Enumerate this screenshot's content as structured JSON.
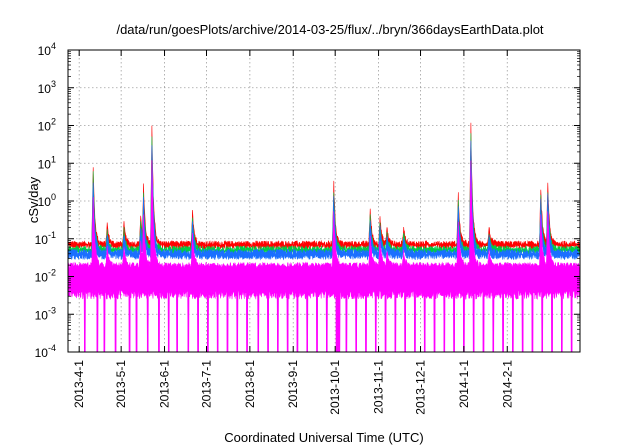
{
  "chart_data": {
    "type": "line",
    "title": "/data/run/goesPlots/archive/2014-03-25/flux/../bryn/366daysEarthData.plot",
    "xlabel": "Coordinated Universal Time (UTC)",
    "ylabel": "cSv/day",
    "y_scale": "log",
    "ylim": [
      0.0001,
      10000
    ],
    "xlim": [
      "2013-03-24",
      "2014-03-25"
    ],
    "y_ticks": [
      {
        "value": 0.0001,
        "base": "10",
        "exp": "-4"
      },
      {
        "value": 0.001,
        "base": "10",
        "exp": "-3"
      },
      {
        "value": 0.01,
        "base": "10",
        "exp": "-2"
      },
      {
        "value": 0.1,
        "base": "10",
        "exp": "-1"
      },
      {
        "value": 1,
        "base": "10",
        "exp": "0"
      },
      {
        "value": 10,
        "base": "10",
        "exp": "1"
      },
      {
        "value": 100,
        "base": "10",
        "exp": "2"
      },
      {
        "value": 1000,
        "base": "10",
        "exp": "3"
      },
      {
        "value": 10000,
        "base": "10",
        "exp": "4"
      }
    ],
    "x_ticks": [
      {
        "date": "2013-04-01",
        "label": "2013-4-1"
      },
      {
        "date": "2013-05-01",
        "label": "2013-5-1"
      },
      {
        "date": "2013-06-01",
        "label": "2013-6-1"
      },
      {
        "date": "2013-07-01",
        "label": "2013-7-1"
      },
      {
        "date": "2013-08-01",
        "label": "2013-8-1"
      },
      {
        "date": "2013-09-01",
        "label": "2013-9-1"
      },
      {
        "date": "2013-10-01",
        "label": "2013-10-1"
      },
      {
        "date": "2013-11-01",
        "label": "2013-11-1"
      },
      {
        "date": "2013-12-01",
        "label": "2013-12-1"
      },
      {
        "date": "2014-01-01",
        "label": "2014-1-1"
      },
      {
        "date": "2014-02-01",
        "label": "2014-2-1"
      }
    ],
    "grid": true,
    "series": [
      {
        "color": "#ff0000",
        "baseline": 0.075,
        "low": 0.075
      },
      {
        "color": "#00cc44",
        "baseline": 0.055,
        "low": 0.055
      },
      {
        "color": "#1a6fff",
        "baseline": 0.045,
        "low": 0.04
      },
      {
        "color": "#ff00ff",
        "baseline": 0.02,
        "low": 0.0025
      }
    ],
    "events": [
      {
        "date": "2013-04-11",
        "peak": 9
      },
      {
        "date": "2013-04-21",
        "peak": 0.25
      },
      {
        "date": "2013-05-03",
        "peak": 0.25
      },
      {
        "date": "2013-05-15",
        "peak": 0.4
      },
      {
        "date": "2013-05-17",
        "peak": 2.5
      },
      {
        "date": "2013-05-23",
        "peak": 90
      },
      {
        "date": "2013-06-21",
        "peak": 0.6
      },
      {
        "date": "2013-09-30",
        "peak": 3
      },
      {
        "date": "2013-10-26",
        "peak": 0.6
      },
      {
        "date": "2013-11-02",
        "peak": 0.4
      },
      {
        "date": "2013-11-07",
        "peak": 0.2
      },
      {
        "date": "2013-11-19",
        "peak": 0.2
      },
      {
        "date": "2013-12-28",
        "peak": 1.5
      },
      {
        "date": "2014-01-06",
        "peak": 110
      },
      {
        "date": "2014-01-19",
        "peak": 0.2
      },
      {
        "date": "2014-02-25",
        "peak": 2.2
      },
      {
        "date": "2014-03-02",
        "peak": 3
      }
    ],
    "magenta_dips": [
      "2013-04-05",
      "2013-04-14",
      "2013-04-19",
      "2013-04-27",
      "2013-05-07",
      "2013-05-12",
      "2013-05-20",
      "2013-05-28",
      "2013-06-04",
      "2013-06-10",
      "2013-06-18",
      "2013-06-25",
      "2013-07-02",
      "2013-07-09",
      "2013-07-16",
      "2013-07-23",
      "2013-07-30",
      "2013-08-07",
      "2013-08-14",
      "2013-08-21",
      "2013-08-28",
      "2013-09-04",
      "2013-09-11",
      "2013-09-18",
      "2013-09-25",
      "2013-10-02",
      "2013-10-03",
      "2013-10-04",
      "2013-10-09",
      "2013-10-16",
      "2013-10-23",
      "2013-10-30",
      "2013-11-06",
      "2013-11-13",
      "2013-11-20",
      "2013-11-27",
      "2013-12-04",
      "2013-12-11",
      "2013-12-18",
      "2013-12-25",
      "2014-01-01",
      "2014-01-08",
      "2014-01-15",
      "2014-01-22",
      "2014-01-29",
      "2014-02-05",
      "2014-02-12",
      "2014-02-19",
      "2014-02-26",
      "2014-03-05",
      "2014-03-12",
      "2014-03-19"
    ]
  }
}
